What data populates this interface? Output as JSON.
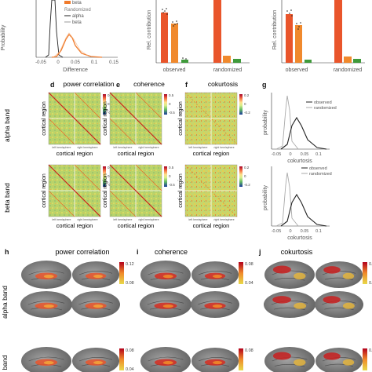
{
  "panel_letters": {
    "d": "d",
    "e": "e",
    "f": "f",
    "g": "g",
    "h": "h",
    "i": "i",
    "j": "j"
  },
  "top": {
    "a_ylabel": "Probability",
    "a_xlabel": "Difference",
    "a_ticks": [
      "-0.05",
      "0",
      "0.05",
      "0.1",
      "0.15"
    ],
    "a_legend": [
      "beta",
      "Randomized",
      "alpha",
      "beta"
    ],
    "b_ylabel": "Rel. contribution",
    "b_ticks": [
      "observed",
      "randomized"
    ],
    "c_ylabel": "Rel. contribution",
    "c_ticks": [
      "observed",
      "randomized"
    ]
  },
  "matrix_titles": {
    "power": "power correlation",
    "coh": "coherence",
    "cok": "cokurtosis"
  },
  "matrix_labels": {
    "ylabel": "cortical region",
    "xlabel": "cortical region",
    "left_hemisphere": "left hemisphere",
    "right_hemisphere": "right hemisphere"
  },
  "row_labels": {
    "alpha": "alpha band",
    "beta": "beta band"
  },
  "colorbars": {
    "corr": [
      "0.5",
      "0",
      "-0.5"
    ],
    "cok": [
      "0.2",
      "0",
      "-0.2"
    ]
  },
  "hist": {
    "ylabel": "probability",
    "xlabel": "cokurtosis",
    "ticks": [
      "-0.05",
      "0",
      "0.05",
      "0.1"
    ],
    "legend": [
      "observed",
      "randomized"
    ]
  },
  "brain_titles": {
    "power": "power correlation",
    "coh": "coherence",
    "cok": "cokurtosis"
  },
  "brain_rows": {
    "alpha": "alpha band",
    "beta": "band"
  },
  "brain_colorbars": {
    "h_alpha": [
      "0.12",
      "0.08"
    ],
    "i_alpha": [
      "0.08",
      "0.04"
    ],
    "j_alpha": [
      "0.05",
      "0.03"
    ],
    "h_beta": [
      "0.08",
      "0.04"
    ],
    "i_beta": [
      "0.08"
    ],
    "j_beta": [
      "0.05"
    ]
  },
  "colors": {
    "observed_bar": "#f07b2c",
    "randomized_bar": "#e9552b",
    "green_bar": "#3f9a3a",
    "black_line": "#222222",
    "gray_line": "#999999",
    "brain_gray": "#8a8a8a"
  }
}
